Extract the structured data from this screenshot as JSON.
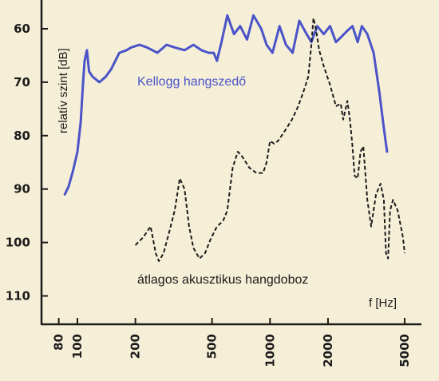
{
  "chart_data": {
    "type": "line",
    "title": "",
    "xlabel": "f [Hz]",
    "ylabel": "relatív szint [dB]",
    "x_scale": "log",
    "xlim": [
      75,
      5500
    ],
    "ylim": [
      55,
      115
    ],
    "y_inverted": true,
    "grid": false,
    "x_ticks": [
      {
        "value": 80,
        "label": "80"
      },
      {
        "value": 100,
        "label": "100"
      },
      {
        "value": 200,
        "label": "200"
      },
      {
        "value": 500,
        "label": "500"
      },
      {
        "value": 1000,
        "label": "1000"
      },
      {
        "value": 2000,
        "label": "2000"
      },
      {
        "value": 5000,
        "label": "5000"
      }
    ],
    "y_ticks": [
      {
        "value": 60,
        "label": "60"
      },
      {
        "value": 70,
        "label": "70"
      },
      {
        "value": 80,
        "label": "80"
      },
      {
        "value": 90,
        "label": "90"
      },
      {
        "value": 100,
        "label": "100"
      },
      {
        "value": 110,
        "label": "110"
      }
    ],
    "series": [
      {
        "name": "Kellogg hangszedő",
        "color": "#4a54c8",
        "style": "solid",
        "points": [
          [
            86,
            91
          ],
          [
            90,
            89.5
          ],
          [
            95,
            86.5
          ],
          [
            100,
            83
          ],
          [
            104,
            77.5
          ],
          [
            107,
            70
          ],
          [
            109,
            66
          ],
          [
            112,
            64
          ],
          [
            115,
            68
          ],
          [
            120,
            69
          ],
          [
            125,
            69.5
          ],
          [
            130,
            70
          ],
          [
            140,
            69
          ],
          [
            150,
            67.5
          ],
          [
            165,
            64.5
          ],
          [
            180,
            64
          ],
          [
            190,
            63.5
          ],
          [
            210,
            63
          ],
          [
            230,
            63.5
          ],
          [
            260,
            64.5
          ],
          [
            290,
            63
          ],
          [
            320,
            63.5
          ],
          [
            360,
            64
          ],
          [
            400,
            63
          ],
          [
            440,
            64
          ],
          [
            480,
            64.5
          ],
          [
            510,
            64.5
          ],
          [
            530,
            66
          ],
          [
            560,
            62.5
          ],
          [
            600,
            57.5
          ],
          [
            650,
            61
          ],
          [
            700,
            59.5
          ],
          [
            760,
            62
          ],
          [
            820,
            57.5
          ],
          [
            900,
            60
          ],
          [
            960,
            63
          ],
          [
            1030,
            64.5
          ],
          [
            1120,
            59.5
          ],
          [
            1210,
            63
          ],
          [
            1310,
            64.5
          ],
          [
            1420,
            58.5
          ],
          [
            1520,
            60.5
          ],
          [
            1640,
            62.5
          ],
          [
            1760,
            59.5
          ],
          [
            1900,
            61
          ],
          [
            2050,
            59.5
          ],
          [
            2200,
            62.5
          ],
          [
            2350,
            61.5
          ],
          [
            2500,
            60.5
          ],
          [
            2680,
            59.5
          ],
          [
            2850,
            62.5
          ],
          [
            3000,
            59.5
          ],
          [
            3200,
            61
          ],
          [
            3450,
            64.5
          ],
          [
            3700,
            72
          ],
          [
            3880,
            78
          ],
          [
            4050,
            83
          ]
        ]
      },
      {
        "name": "átlagos akusztikus hangdoboz",
        "color": "#1b1b1b",
        "style": "dashed",
        "points": [
          [
            200,
            100.5
          ],
          [
            220,
            99
          ],
          [
            240,
            97
          ],
          [
            255,
            102
          ],
          [
            265,
            103.5
          ],
          [
            280,
            102
          ],
          [
            300,
            98
          ],
          [
            320,
            94
          ],
          [
            340,
            88
          ],
          [
            360,
            90
          ],
          [
            380,
            97
          ],
          [
            400,
            101
          ],
          [
            430,
            103
          ],
          [
            460,
            102
          ],
          [
            490,
            99.5
          ],
          [
            530,
            97
          ],
          [
            570,
            96
          ],
          [
            600,
            94
          ],
          [
            640,
            86
          ],
          [
            680,
            83
          ],
          [
            720,
            84
          ],
          [
            780,
            86
          ],
          [
            850,
            87
          ],
          [
            920,
            87
          ],
          [
            960,
            85
          ],
          [
            1000,
            81
          ],
          [
            1050,
            81.5
          ],
          [
            1100,
            81
          ],
          [
            1200,
            79
          ],
          [
            1300,
            77
          ],
          [
            1400,
            74.5
          ],
          [
            1500,
            71.5
          ],
          [
            1580,
            69
          ],
          [
            1640,
            63
          ],
          [
            1680,
            58
          ],
          [
            1730,
            60
          ],
          [
            1800,
            64
          ],
          [
            1900,
            67
          ],
          [
            2050,
            70.5
          ],
          [
            2200,
            74.5
          ],
          [
            2330,
            74
          ],
          [
            2400,
            77
          ],
          [
            2520,
            73.5
          ],
          [
            2600,
            77
          ],
          [
            2680,
            82
          ],
          [
            2750,
            87.5
          ],
          [
            2850,
            88
          ],
          [
            2950,
            83
          ],
          [
            3050,
            82
          ],
          [
            3200,
            92
          ],
          [
            3350,
            97
          ],
          [
            3550,
            91
          ],
          [
            3750,
            89
          ],
          [
            3900,
            92
          ],
          [
            4000,
            102
          ],
          [
            4100,
            103
          ],
          [
            4200,
            94
          ],
          [
            4350,
            92
          ],
          [
            4600,
            94
          ],
          [
            4900,
            99
          ],
          [
            5000,
            102
          ]
        ]
      }
    ]
  }
}
